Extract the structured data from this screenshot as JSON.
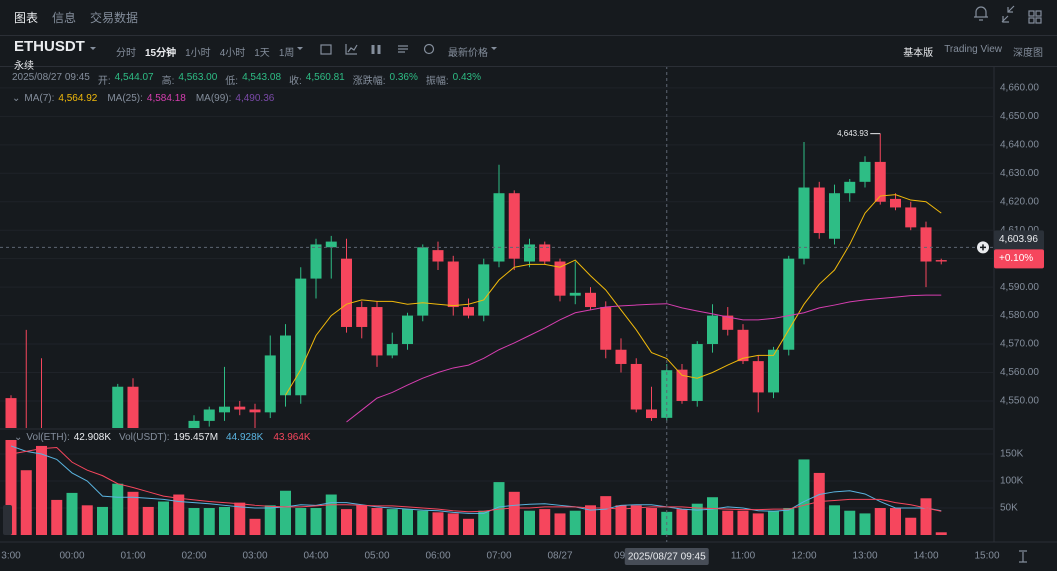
{
  "nav": {
    "tabs": [
      "图表",
      "信息",
      "交易数据"
    ]
  },
  "symbol": {
    "name": "ETHUSDT",
    "kind": "永续"
  },
  "intervals": [
    "分时",
    "15分钟",
    "1小时",
    "4小时",
    "1天",
    "1周"
  ],
  "price_menu": "最新价格",
  "views": [
    "基本版",
    "Trading View",
    "深度图"
  ],
  "chart_data": {
    "type": "candlestick",
    "info": {
      "time": "2025/08/27 09:45",
      "fields": [
        {
          "label": "开:",
          "value": "4,544.07"
        },
        {
          "label": "高:",
          "value": "4,563.00"
        },
        {
          "label": "低:",
          "value": "4,543.08"
        },
        {
          "label": "收:",
          "value": "4,560.81"
        },
        {
          "label": "涨跌幅:",
          "value": "0.36%"
        },
        {
          "label": "振幅:",
          "value": "0.43%"
        }
      ]
    },
    "categories": [
      "3:00",
      null,
      null,
      null,
      "00:00",
      null,
      null,
      null,
      "01:00",
      null,
      null,
      null,
      "02:00",
      null,
      null,
      null,
      "03:00",
      null,
      null,
      null,
      "04:00",
      null,
      null,
      null,
      "05:00",
      null,
      null,
      null,
      "06:00",
      null,
      null,
      null,
      "07:00",
      null,
      null,
      null,
      "08/27",
      null,
      null,
      null,
      "09:",
      null,
      null,
      null,
      null,
      null,
      null,
      null,
      "11:00",
      null,
      null,
      null,
      "12:00",
      null,
      null,
      null,
      "13:00",
      null,
      null,
      null,
      "14:00",
      null,
      null,
      null,
      "15:00"
    ],
    "open": [
      4551,
      4538,
      4535,
      4532,
      4530,
      4534,
      4531,
      4535,
      4555,
      4538,
      4532,
      4535,
      4533,
      4543,
      4546,
      4548,
      4547,
      4546,
      4552,
      4552,
      4593,
      4604,
      4600,
      4583,
      4583,
      4566,
      4570,
      4580,
      4603,
      4599,
      4583,
      4580,
      4599,
      4623,
      4599,
      4605,
      4599,
      4587,
      4588,
      4583,
      4568,
      4563,
      4547,
      4544.07,
      4561,
      4550,
      4570,
      4580,
      4575,
      4564,
      4553,
      4568,
      4600,
      4625,
      4607,
      4623,
      4627,
      4634,
      4621,
      4618,
      4611,
      4599.5,
      null,
      null,
      null
    ],
    "high": [
      4552,
      4575,
      4565,
      4538,
      4536,
      4538,
      4537,
      4556,
      4558,
      4540,
      4538,
      4539,
      4545,
      4548,
      4562,
      4550,
      4549,
      4573,
      4577,
      4597,
      4607,
      4608,
      4607,
      4585,
      4585,
      4574,
      4581,
      4605,
      4606,
      4601,
      4586,
      4600,
      4633,
      4624,
      4607,
      4606,
      4600,
      4599,
      4590,
      4585,
      4572,
      4565,
      4555,
      4563,
      4563,
      4571,
      4584,
      4583,
      4577,
      4566,
      4569,
      4601,
      4641,
      4627,
      4626,
      4628,
      4636,
      4643.93,
      4623,
      4620,
      4613,
      4600,
      null,
      null,
      null
    ],
    "low": [
      4536,
      4530,
      4528,
      4525,
      4526,
      4528,
      4527,
      4533,
      4535,
      4528,
      4527,
      4529,
      4530,
      4541,
      4543,
      4545,
      4540,
      4544,
      4548,
      4549,
      4586,
      4593,
      4574,
      4572,
      4562,
      4565,
      4568,
      4578,
      4596,
      4580,
      4579,
      4578,
      4597,
      4596,
      4597,
      4598,
      4585,
      4584,
      4582,
      4565,
      4560,
      4546,
      4543,
      4543.08,
      4549,
      4548,
      4567,
      4573,
      4563,
      4546,
      4551,
      4566,
      4598,
      4607,
      4605,
      4620,
      4625,
      4619,
      4617,
      4610,
      4590,
      4598,
      null,
      null,
      null
    ],
    "close": [
      4538,
      4535,
      4532,
      4530,
      4534,
      4531,
      4535,
      4555,
      4538,
      4532,
      4535,
      4533,
      4543,
      4547,
      4548,
      4547,
      4546,
      4566,
      4573,
      4593,
      4605,
      4606,
      4576,
      4576,
      4566,
      4570,
      4580,
      4604,
      4599,
      4583,
      4580,
      4598,
      4623,
      4600,
      4605,
      4599,
      4587,
      4588,
      4583,
      4568,
      4563,
      4547,
      4544,
      4560.81,
      4550,
      4570,
      4580,
      4575,
      4564,
      4553,
      4568,
      4600,
      4625,
      4609,
      4623,
      4627,
      4634,
      4620,
      4618,
      4611,
      4599,
      4599,
      null,
      null,
      null
    ],
    "up_color": "#2ebd85",
    "down_color": "#f6465d",
    "ylim": [
      4540.5,
      4667.7
    ],
    "yticks": [
      {
        "value": 4550,
        "label": "4,550.00"
      },
      {
        "value": 4560,
        "label": "4,560.00"
      },
      {
        "value": 4570,
        "label": "4,570.00"
      },
      {
        "value": 4580,
        "label": "4,580.00"
      },
      {
        "value": 4590,
        "label": "4,590.00"
      },
      {
        "value": 4600,
        "label": "4,600.00"
      },
      {
        "value": 4610,
        "label": "4,610.00"
      },
      {
        "value": 4620,
        "label": "4,620.00"
      },
      {
        "value": 4630,
        "label": "4,630.00"
      },
      {
        "value": 4640,
        "label": "4,640.00"
      },
      {
        "value": 4650,
        "label": "4,650.00"
      },
      {
        "value": 4660,
        "label": "4,660.00"
      }
    ],
    "grid": true,
    "ma_series": [
      {
        "name": "MA(7):",
        "value_label": "4,564.92",
        "color": "#f0b90b",
        "values": [
          null,
          null,
          null,
          null,
          null,
          null,
          null,
          null,
          null,
          null,
          null,
          null,
          null,
          null,
          null,
          null,
          null,
          null,
          4552,
          4561,
          4573,
          4580,
          4584,
          4585.5,
          4585,
          4585,
          4584,
          4584.5,
          4584,
          4583.5,
          4584,
          4585.5,
          4592.5,
          4597,
          4598,
          4598,
          4597,
          4599.5,
          4594,
          4589,
          4582,
          4575,
          4567,
          4564.92,
          4559,
          4558,
          4560,
          4562.6,
          4565,
          4566,
          4566,
          4575,
          4584,
          4591,
          4596,
          4605,
          4616,
          4622,
          4622.5,
          4620.6,
          4620,
          4616,
          null,
          null,
          null
        ]
      },
      {
        "name": "MA(25):",
        "value_label": "4,584.18",
        "color": "#d63eb0",
        "values": [
          null,
          null,
          null,
          null,
          null,
          null,
          null,
          null,
          null,
          null,
          null,
          null,
          null,
          null,
          null,
          null,
          null,
          null,
          null,
          null,
          null,
          null,
          4542.6,
          4546.8,
          4551,
          4553,
          4555.6,
          4558,
          4560,
          4561.6,
          4562.6,
          4565,
          4568,
          4570.4,
          4573,
          4575.6,
          4578.5,
          4581,
          4582,
          4583,
          4583.4,
          4583.7,
          4584,
          4584.18,
          4582.7,
          4581.6,
          4580.6,
          4579.5,
          4578.5,
          4578.5,
          4579,
          4580,
          4581,
          4582.7,
          4583.7,
          4584.8,
          4585.5,
          4586,
          4586.5,
          4587,
          4587.2,
          4587.2,
          null,
          null,
          null
        ]
      },
      {
        "name": "MA(99):",
        "value_label": "4,490.36",
        "color": "#7a4aa8"
      }
    ],
    "high_marker": {
      "value": 4643.93,
      "label": "4,643.93"
    },
    "crosshair": {
      "time": "2025/08/27 09:45",
      "price": {
        "value": 4603.96,
        "label": "4,603.96"
      },
      "change": "+0.10%"
    },
    "volume": {
      "legend": [
        {
          "label": "Vol(ETH):",
          "value": "42.908K"
        },
        {
          "label": "Vol(USDT):",
          "value": "195.457M"
        }
      ],
      "values": [
        190000,
        120000,
        165000,
        65000,
        78000,
        55000,
        52000,
        95000,
        80000,
        52000,
        62000,
        75000,
        50000,
        50000,
        52000,
        60000,
        30000,
        55000,
        82000,
        50000,
        50000,
        75000,
        48000,
        55000,
        50000,
        48000,
        48000,
        45000,
        42000,
        40000,
        30000,
        45000,
        98000,
        80000,
        45000,
        48000,
        40000,
        45000,
        55000,
        72000,
        55000,
        55000,
        50000,
        42908,
        48000,
        58000,
        70000,
        45000,
        45000,
        40000,
        45000,
        50000,
        140000,
        115000,
        55000,
        45000,
        40000,
        50000,
        50000,
        32000,
        68000,
        5000,
        null,
        null,
        null
      ],
      "ylim": [
        0,
        176000
      ],
      "yticks": [
        {
          "value": 50000,
          "label": "50K"
        },
        {
          "value": 100000,
          "label": "100K"
        },
        {
          "value": 150000,
          "label": "150K"
        }
      ],
      "ma_series": [
        {
          "value_label": "44.928K",
          "color": "#5ab4e0",
          "values": [
            165000,
            155000,
            150000,
            140000,
            115000,
            100000,
            72000,
            70000,
            70000,
            68000,
            66000,
            62000,
            60000,
            58000,
            55000,
            52000,
            50000,
            50000,
            52000,
            56000,
            55000,
            60000,
            60000,
            56000,
            52000,
            50000,
            48000,
            46000,
            45000,
            42000,
            40000,
            40000,
            52000,
            55000,
            57000,
            58000,
            55000,
            52000,
            46000,
            48000,
            55000,
            56000,
            56000,
            52000,
            48000,
            46000,
            48000,
            52000,
            50000,
            45000,
            44000,
            46000,
            62000,
            75000,
            80000,
            82000,
            76000,
            62000,
            50000,
            50000,
            50000,
            44928,
            null,
            null,
            null
          ]
        },
        {
          "value_label": "43.964K",
          "color": "#f6465d",
          "values": [
            150000,
            155000,
            160000,
            162000,
            135000,
            120000,
            110000,
            95000,
            88000,
            80000,
            72000,
            68000,
            65000,
            62000,
            60000,
            58000,
            55000,
            53000,
            52000,
            52000,
            54000,
            56000,
            56000,
            55000,
            54000,
            54000,
            52000,
            50000,
            48000,
            45000,
            43000,
            44000,
            48000,
            50000,
            50000,
            52000,
            52000,
            52000,
            50000,
            50000,
            48000,
            50000,
            52000,
            52000,
            52000,
            50000,
            49000,
            48000,
            47000,
            47000,
            48000,
            48000,
            55000,
            62000,
            64000,
            66000,
            66000,
            66000,
            60000,
            56000,
            50000,
            43964,
            null,
            null,
            null
          ]
        }
      ]
    }
  }
}
